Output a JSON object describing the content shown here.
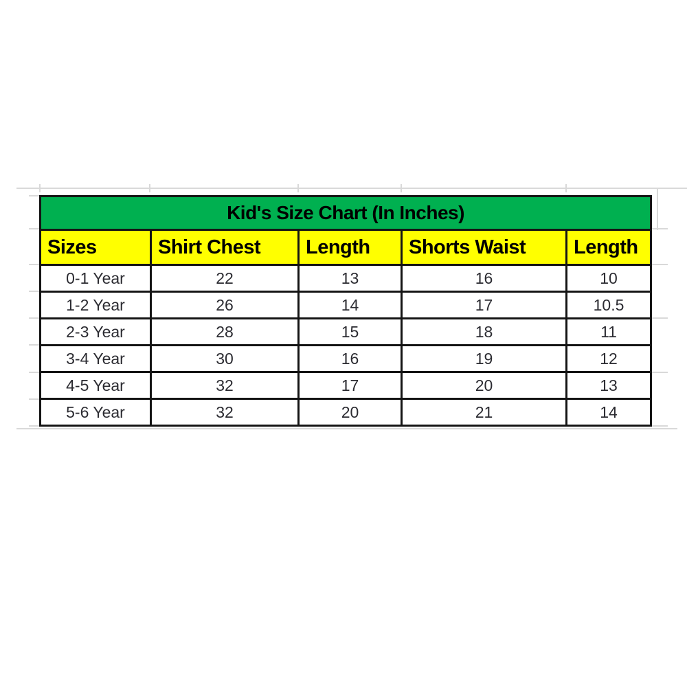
{
  "chart_data": {
    "type": "table",
    "title": "Kid's Size Chart (In Inches)",
    "columns": [
      "Sizes",
      "Shirt Chest",
      "Length",
      "Shorts Waist",
      "Length"
    ],
    "rows": [
      [
        "0-1 Year",
        "22",
        "13",
        "16",
        "10"
      ],
      [
        "1-2 Year",
        "26",
        "14",
        "17",
        "10.5"
      ],
      [
        "2-3 Year",
        "28",
        "15",
        "18",
        "11"
      ],
      [
        "3-4 Year",
        "30",
        "16",
        "19",
        "12"
      ],
      [
        "4-5 Year",
        "32",
        "17",
        "20",
        "13"
      ],
      [
        "5-6 Year",
        "32",
        "20",
        "21",
        "14"
      ]
    ]
  },
  "colors": {
    "title_bg": "#00B050",
    "header_bg": "#FFFF00",
    "border": "#141414",
    "cell_text": "#2b2b31",
    "gridline": "#d9d9d9"
  }
}
